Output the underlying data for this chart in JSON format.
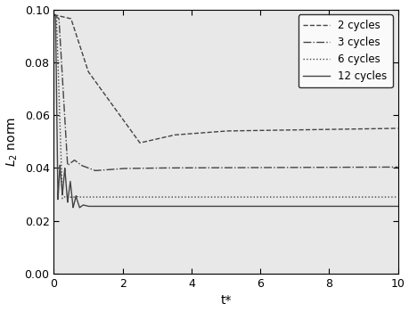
{
  "title": "",
  "xlabel": "t*",
  "ylabel": "$L_2$ norm",
  "xlim": [
    0,
    10
  ],
  "ylim": [
    0.0,
    0.1
  ],
  "yticks": [
    0.0,
    0.02,
    0.04,
    0.06,
    0.08,
    0.1
  ],
  "xticks": [
    0,
    2,
    4,
    6,
    8,
    10
  ],
  "legend_labels": [
    "2 cycles",
    "3 cycles",
    "6 cycles",
    "12 cycles"
  ],
  "line_styles": [
    "--",
    "-.",
    ":",
    "-"
  ],
  "line_color": "#444444",
  "background_color": "#e8e8e8",
  "figsize": [
    4.6,
    3.5
  ],
  "dpi": 100
}
